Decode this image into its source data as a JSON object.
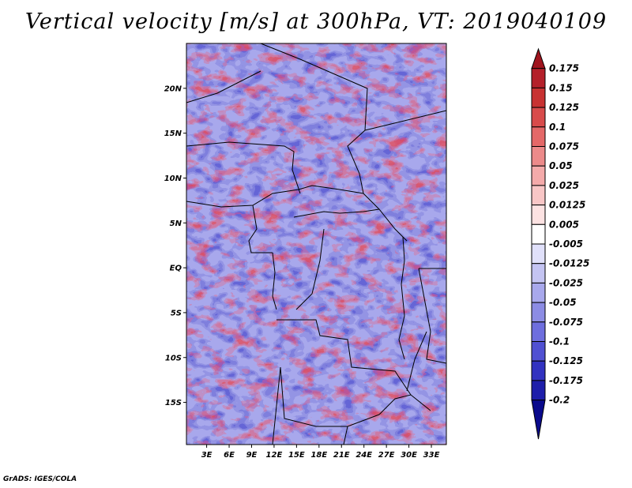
{
  "chart_data": {
    "type": "heatmap",
    "title": "Vertical velocity [m/s] at 300hPa, VT: 2019040109",
    "variable": "Vertical velocity",
    "units": "m/s",
    "level": "300hPa",
    "valid_time": "2019040109",
    "xlabel": "",
    "ylabel": "",
    "x_ticks": [
      "3E",
      "6E",
      "9E",
      "12E",
      "15E",
      "18E",
      "21E",
      "24E",
      "27E",
      "30E",
      "33E"
    ],
    "x_tick_values": [
      3,
      6,
      9,
      12,
      15,
      18,
      21,
      24,
      27,
      30,
      33
    ],
    "y_ticks": [
      "20N",
      "15N",
      "10N",
      "5N",
      "EQ",
      "5S",
      "10S",
      "15S"
    ],
    "y_tick_values": [
      20,
      15,
      10,
      5,
      0,
      -5,
      -10,
      -15
    ],
    "xlim": [
      0.3,
      35.0
    ],
    "ylim": [
      -19.7,
      25.0
    ],
    "colorbar_levels": [
      "0.175",
      "0.15",
      "0.125",
      "0.1",
      "0.075",
      "0.05",
      "0.025",
      "0.0125",
      "0.005",
      "-0.005",
      "-0.0125",
      "-0.025",
      "-0.05",
      "-0.075",
      "-0.1",
      "-0.125",
      "-0.175",
      "-0.2"
    ],
    "colorbar_colors": [
      "#a0141e",
      "#b4202a",
      "#c83232",
      "#d84b4b",
      "#e46868",
      "#ec8a8a",
      "#f4aaaa",
      "#f8c6c6",
      "#fce2e2",
      "#ffffff",
      "#e0e0fa",
      "#c4c4f2",
      "#a8a8ec",
      "#8c8ce4",
      "#6e6ede",
      "#5050d2",
      "#3232c0",
      "#1e1eaa",
      "#0a0a8c"
    ]
  },
  "credit": "GrADS: IGES/COLA"
}
